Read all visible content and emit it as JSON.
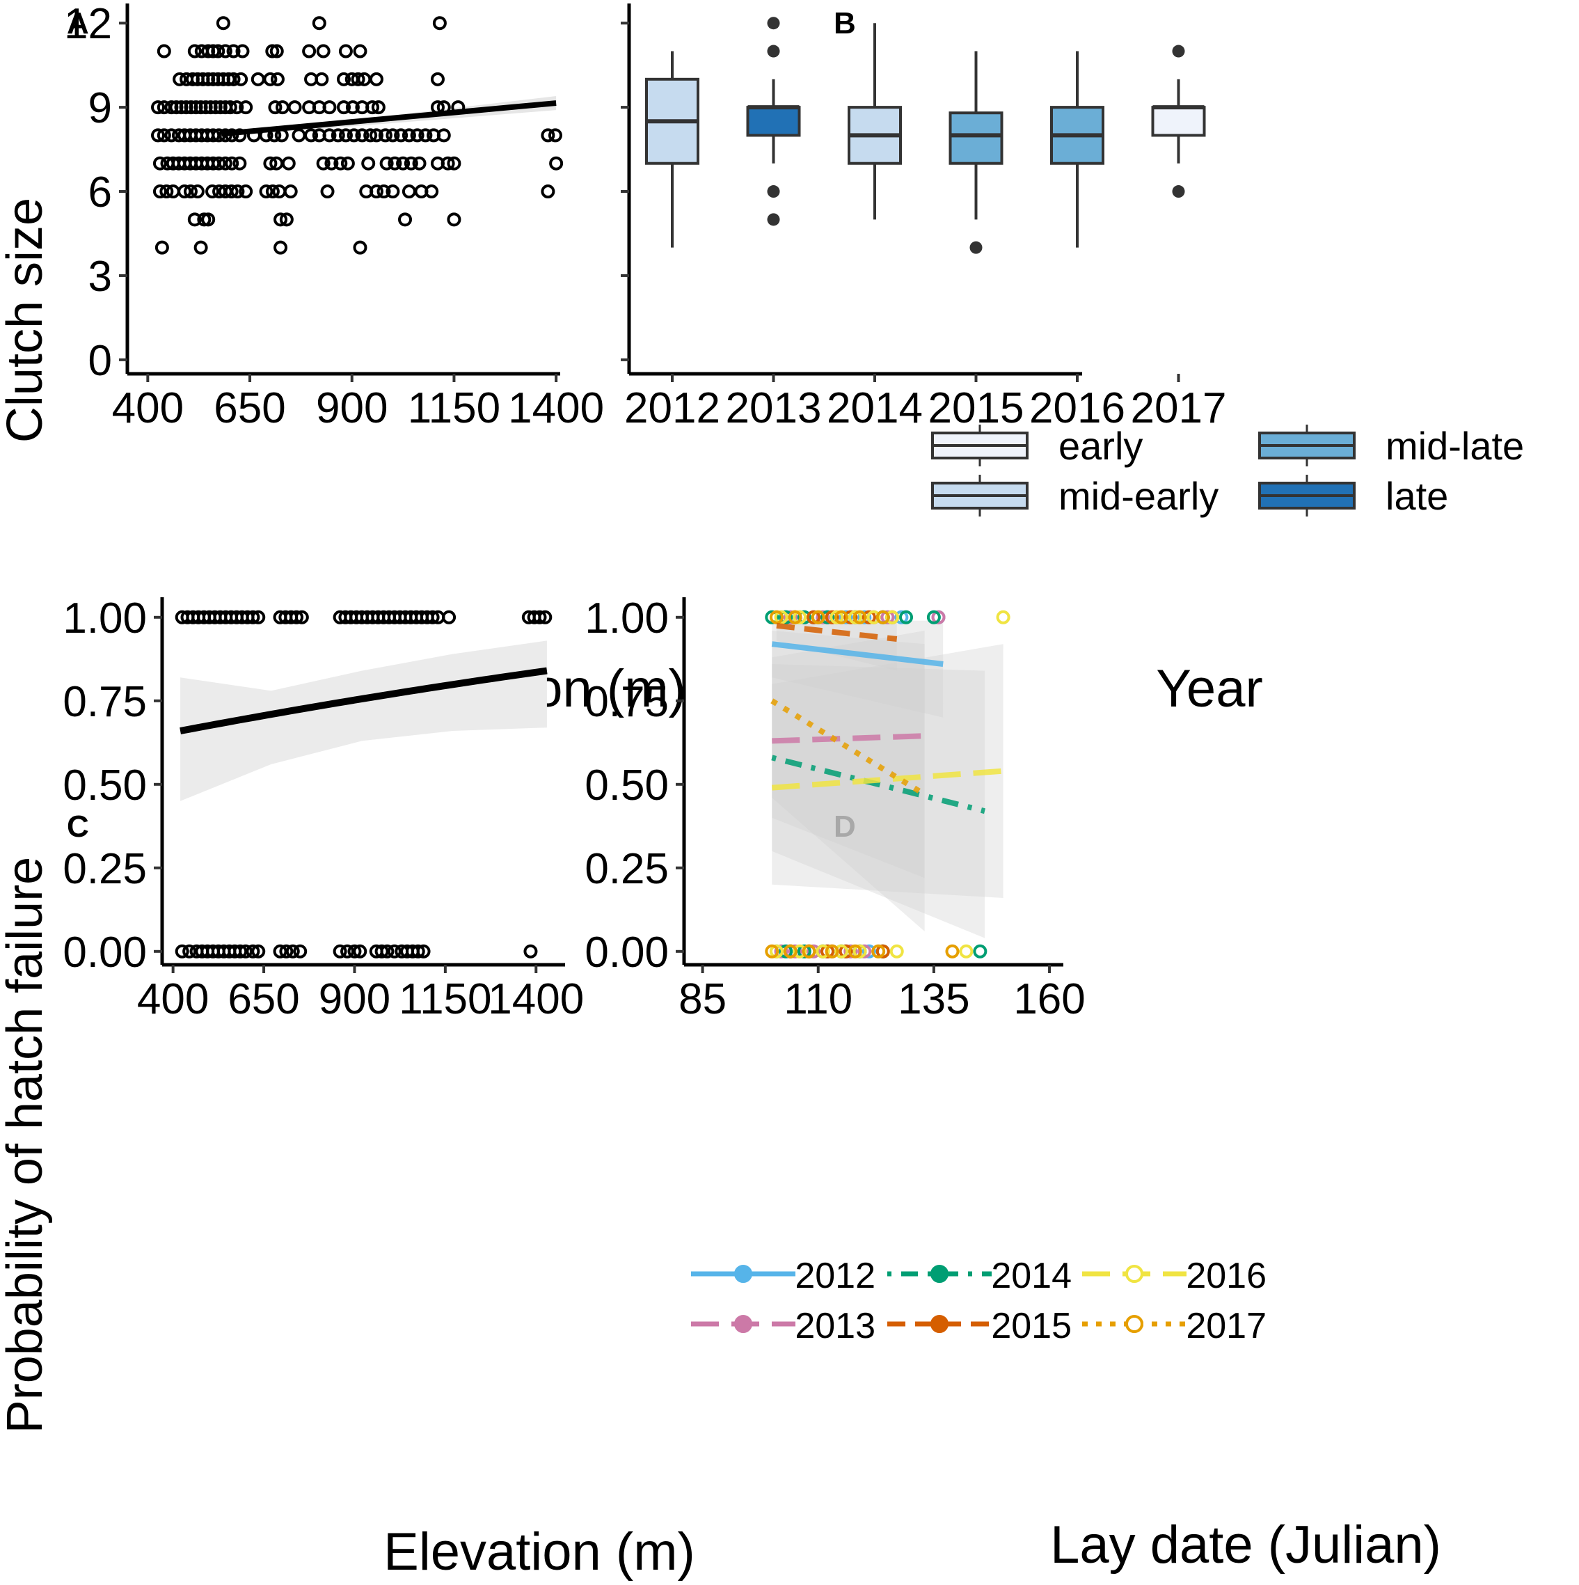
{
  "figure": {
    "y_label_top": "Clutch size",
    "y_label_bottom": "Probability of hatch failure"
  },
  "chart_data": [
    {
      "id": "A",
      "panel_label": "A",
      "type": "scatter",
      "xlabel": "Elevation (m)",
      "ylabel": "Clutch size",
      "xlim": [
        350,
        1410
      ],
      "ylim": [
        -0.5,
        12.7
      ],
      "xticks": [
        400,
        650,
        900,
        1150,
        1400
      ],
      "yticks": [
        0,
        3,
        6,
        9,
        12
      ],
      "tick_labels_x": [
        "400",
        "650",
        "900",
        "1150",
        "1400"
      ],
      "tick_labels_y": [
        "0",
        "3",
        "6",
        "9",
        "12"
      ],
      "points": [
        [
          440,
          11
        ],
        [
          515,
          11
        ],
        [
          532,
          11
        ],
        [
          548,
          11
        ],
        [
          560,
          11
        ],
        [
          572,
          11
        ],
        [
          590,
          11
        ],
        [
          610,
          11
        ],
        [
          632,
          11
        ],
        [
          705,
          11
        ],
        [
          716,
          11
        ],
        [
          795,
          11
        ],
        [
          830,
          11
        ],
        [
          885,
          11
        ],
        [
          920,
          11
        ],
        [
          585,
          12
        ],
        [
          820,
          12
        ],
        [
          1115,
          12
        ],
        [
          478,
          10
        ],
        [
          495,
          10
        ],
        [
          510,
          10
        ],
        [
          522,
          10
        ],
        [
          535,
          10
        ],
        [
          548,
          10
        ],
        [
          560,
          10
        ],
        [
          572,
          10
        ],
        [
          585,
          10
        ],
        [
          598,
          10
        ],
        [
          610,
          10
        ],
        [
          628,
          10
        ],
        [
          670,
          10
        ],
        [
          700,
          10
        ],
        [
          718,
          10
        ],
        [
          800,
          10
        ],
        [
          826,
          10
        ],
        [
          880,
          10
        ],
        [
          900,
          10
        ],
        [
          915,
          10
        ],
        [
          930,
          10
        ],
        [
          960,
          10
        ],
        [
          1110,
          10
        ],
        [
          425,
          9
        ],
        [
          440,
          9
        ],
        [
          458,
          9
        ],
        [
          470,
          9
        ],
        [
          482,
          9
        ],
        [
          494,
          9
        ],
        [
          506,
          9
        ],
        [
          518,
          9
        ],
        [
          530,
          9
        ],
        [
          542,
          9
        ],
        [
          554,
          9
        ],
        [
          566,
          9
        ],
        [
          578,
          9
        ],
        [
          590,
          9
        ],
        [
          602,
          9
        ],
        [
          618,
          9
        ],
        [
          640,
          9
        ],
        [
          712,
          9
        ],
        [
          730,
          9
        ],
        [
          760,
          9
        ],
        [
          795,
          9
        ],
        [
          820,
          9
        ],
        [
          845,
          9
        ],
        [
          880,
          9
        ],
        [
          902,
          9
        ],
        [
          925,
          9
        ],
        [
          950,
          9
        ],
        [
          965,
          9
        ],
        [
          1110,
          9
        ],
        [
          1125,
          9
        ],
        [
          1160,
          9
        ],
        [
          425,
          8
        ],
        [
          440,
          8
        ],
        [
          458,
          8
        ],
        [
          476,
          8
        ],
        [
          490,
          8
        ],
        [
          504,
          8
        ],
        [
          518,
          8
        ],
        [
          532,
          8
        ],
        [
          546,
          8
        ],
        [
          560,
          8
        ],
        [
          574,
          8
        ],
        [
          590,
          8
        ],
        [
          606,
          8
        ],
        [
          625,
          8
        ],
        [
          660,
          8
        ],
        [
          690,
          8
        ],
        [
          710,
          8
        ],
        [
          728,
          8
        ],
        [
          770,
          8
        ],
        [
          800,
          8
        ],
        [
          820,
          8
        ],
        [
          845,
          8
        ],
        [
          866,
          8
        ],
        [
          885,
          8
        ],
        [
          905,
          8
        ],
        [
          925,
          8
        ],
        [
          945,
          8
        ],
        [
          960,
          8
        ],
        [
          982,
          8
        ],
        [
          1000,
          8
        ],
        [
          1020,
          8
        ],
        [
          1040,
          8
        ],
        [
          1060,
          8
        ],
        [
          1080,
          8
        ],
        [
          1100,
          8
        ],
        [
          1125,
          8
        ],
        [
          1380,
          8
        ],
        [
          1398,
          8
        ],
        [
          430,
          7
        ],
        [
          448,
          7
        ],
        [
          462,
          7
        ],
        [
          476,
          7
        ],
        [
          490,
          7
        ],
        [
          504,
          7
        ],
        [
          518,
          7
        ],
        [
          532,
          7
        ],
        [
          546,
          7
        ],
        [
          560,
          7
        ],
        [
          574,
          7
        ],
        [
          590,
          7
        ],
        [
          606,
          7
        ],
        [
          625,
          7
        ],
        [
          700,
          7
        ],
        [
          715,
          7
        ],
        [
          745,
          7
        ],
        [
          830,
          7
        ],
        [
          850,
          7
        ],
        [
          872,
          7
        ],
        [
          890,
          7
        ],
        [
          940,
          7
        ],
        [
          985,
          7
        ],
        [
          1005,
          7
        ],
        [
          1025,
          7
        ],
        [
          1045,
          7
        ],
        [
          1065,
          7
        ],
        [
          1110,
          7
        ],
        [
          1135,
          7
        ],
        [
          1150,
          7
        ],
        [
          1400,
          7
        ],
        [
          430,
          6
        ],
        [
          446,
          6
        ],
        [
          462,
          6
        ],
        [
          490,
          6
        ],
        [
          505,
          6
        ],
        [
          522,
          6
        ],
        [
          558,
          6
        ],
        [
          575,
          6
        ],
        [
          590,
          6
        ],
        [
          605,
          6
        ],
        [
          620,
          6
        ],
        [
          640,
          6
        ],
        [
          690,
          6
        ],
        [
          706,
          6
        ],
        [
          722,
          6
        ],
        [
          750,
          6
        ],
        [
          840,
          6
        ],
        [
          935,
          6
        ],
        [
          960,
          6
        ],
        [
          978,
          6
        ],
        [
          1000,
          6
        ],
        [
          1040,
          6
        ],
        [
          1070,
          6
        ],
        [
          1095,
          6
        ],
        [
          1380,
          6
        ],
        [
          515,
          5
        ],
        [
          538,
          5
        ],
        [
          548,
          5
        ],
        [
          725,
          5
        ],
        [
          740,
          5
        ],
        [
          1030,
          5
        ],
        [
          1150,
          5
        ],
        [
          435,
          4
        ],
        [
          530,
          4
        ],
        [
          725,
          4
        ],
        [
          920,
          4
        ]
      ],
      "fit_line": {
        "x": [
          580,
          1400
        ],
        "y": [
          8.05,
          9.15
        ]
      }
    },
    {
      "id": "B",
      "panel_label": "B",
      "type": "boxplot",
      "xlabel": "Year",
      "ylim": [
        -0.5,
        12.7
      ],
      "yticks": [
        0,
        3,
        6,
        9,
        12
      ],
      "categories": [
        "2012",
        "2013",
        "2014",
        "2015",
        "2016",
        "2017"
      ],
      "boxes": [
        {
          "year": "2012",
          "whisker_low": 4,
          "q1": 7,
          "median": 8.5,
          "q3": 10,
          "whisker_high": 11,
          "outliers": [],
          "group": "mid-early"
        },
        {
          "year": "2013",
          "whisker_low": 7,
          "q1": 8,
          "median": 9,
          "q3": 9,
          "whisker_high": 10,
          "outliers": [
            12,
            11,
            6,
            5
          ],
          "group": "late"
        },
        {
          "year": "2014",
          "whisker_low": 5,
          "q1": 7,
          "median": 8,
          "q3": 9,
          "whisker_high": 12,
          "outliers": [],
          "group": "mid-early"
        },
        {
          "year": "2015",
          "whisker_low": 5,
          "q1": 7,
          "median": 8,
          "q3": 8.8,
          "whisker_high": 11,
          "outliers": [
            4
          ],
          "group": "mid-late"
        },
        {
          "year": "2016",
          "whisker_low": 4,
          "q1": 7,
          "median": 8,
          "q3": 9,
          "whisker_high": 11,
          "outliers": [],
          "group": "mid-late"
        },
        {
          "year": "2017",
          "whisker_low": 7,
          "q1": 8,
          "median": 9,
          "q3": 9,
          "whisker_high": 10,
          "outliers": [
            11,
            6
          ],
          "group": "early"
        }
      ],
      "legend": [
        {
          "label": "early",
          "color": "#eff3fb"
        },
        {
          "label": "mid-late",
          "color": "#6baed6"
        },
        {
          "label": "mid-early",
          "color": "#c6dbef"
        },
        {
          "label": "late",
          "color": "#2171b5"
        }
      ],
      "legend_position": "bottom"
    },
    {
      "id": "C",
      "panel_label": "C",
      "type": "scatter",
      "xlabel": "Elevation (m)",
      "ylabel": "Probability of hatch failure",
      "xlim": [
        370,
        1480
      ],
      "ylim": [
        -0.04,
        1.06
      ],
      "xticks": [
        400,
        650,
        900,
        1150,
        1400
      ],
      "yticks": [
        0,
        0.25,
        0.5,
        0.75,
        1.0
      ],
      "tick_labels_x": [
        "400",
        "650",
        "900",
        "1150",
        "1400"
      ],
      "tick_labels_y": [
        "0.00",
        "0.25",
        "0.50",
        "0.75",
        "1.00"
      ],
      "points_y1": [
        425,
        440,
        455,
        470,
        485,
        500,
        515,
        530,
        545,
        560,
        575,
        590,
        605,
        620,
        635,
        695,
        710,
        725,
        740,
        755,
        860,
        875,
        890,
        905,
        920,
        935,
        950,
        965,
        980,
        995,
        1010,
        1025,
        1040,
        1055,
        1070,
        1085,
        1100,
        1115,
        1130,
        1160,
        1380,
        1395,
        1410,
        1425
      ],
      "points_y0": [
        425,
        445,
        465,
        480,
        495,
        510,
        525,
        540,
        555,
        570,
        585,
        600,
        620,
        635,
        695,
        712,
        730,
        750,
        860,
        880,
        900,
        915,
        960,
        975,
        990,
        1010,
        1030,
        1045,
        1060,
        1075,
        1090,
        1385
      ],
      "fit": {
        "x": [
          420,
          1430
        ],
        "y": [
          0.66,
          0.84
        ]
      },
      "ci_lower": [
        0.45,
        0.56,
        0.63,
        0.66,
        0.67
      ],
      "ci_upper": [
        0.82,
        0.78,
        0.84,
        0.89,
        0.93
      ]
    },
    {
      "id": "D",
      "panel_label": "D",
      "type": "line",
      "xlabel": "Lay date (Julian)",
      "xlim": [
        81,
        163
      ],
      "ylim": [
        -0.04,
        1.06
      ],
      "xticks": [
        85,
        110,
        135,
        160
      ],
      "yticks": [
        0,
        0.25,
        0.5,
        0.75,
        1.0
      ],
      "tick_labels_x": [
        "85",
        "110",
        "135",
        "160"
      ],
      "tick_labels_y": [
        "0.00",
        "0.25",
        "0.50",
        "0.75",
        "1.00"
      ],
      "series": [
        {
          "name": "2012",
          "color": "#56b4e9",
          "dash": "solid",
          "line_x": [
            100,
            137
          ],
          "line_y": [
            0.92,
            0.86
          ],
          "pts1": [
            103,
            106,
            109,
            112,
            116,
            120,
            124,
            128,
            136
          ],
          "pts0": [
            101,
            104,
            108,
            112,
            116,
            121
          ]
        },
        {
          "name": "2013",
          "color": "#cc79a7",
          "dash": "longdash",
          "line_x": [
            100,
            133
          ],
          "line_y": [
            0.63,
            0.645
          ],
          "pts1": [
            104,
            107,
            111,
            114,
            118,
            122,
            125,
            136
          ],
          "pts0": [
            102,
            105,
            109,
            113,
            117,
            120
          ]
        },
        {
          "name": "2014",
          "color": "#009e73",
          "dash": "dotdash",
          "line_x": [
            100,
            146
          ],
          "line_y": [
            0.58,
            0.42
          ],
          "pts1": [
            100,
            103,
            107,
            112,
            118,
            124,
            129,
            135
          ],
          "pts0": [
            103,
            107,
            111,
            115,
            119,
            124,
            145
          ]
        },
        {
          "name": "2015",
          "color": "#d55e00",
          "dash": "dashed",
          "line_x": [
            101,
            127
          ],
          "line_y": [
            0.975,
            0.935
          ],
          "pts1": [
            105,
            109,
            113,
            117,
            121,
            126
          ],
          "pts0": [
            104,
            108,
            112,
            116,
            124
          ]
        },
        {
          "name": "2016",
          "color": "#f0e442",
          "dash": "longdash",
          "line_x": [
            100,
            150
          ],
          "line_y": [
            0.49,
            0.54
          ],
          "pts1": [
            102,
            106,
            110,
            114,
            118,
            122,
            126,
            150
          ],
          "pts0": [
            101,
            106,
            111,
            115,
            119,
            127,
            142
          ]
        },
        {
          "name": "2017",
          "color": "#e69f00",
          "dash": "dotted",
          "line_x": [
            100,
            133
          ],
          "line_y": [
            0.75,
            0.47
          ],
          "pts1": [
            101,
            105,
            110,
            115,
            119,
            124
          ],
          "pts0": [
            100,
            104,
            108,
            113,
            118,
            123,
            139
          ]
        }
      ],
      "legend_position": "bottom"
    }
  ]
}
